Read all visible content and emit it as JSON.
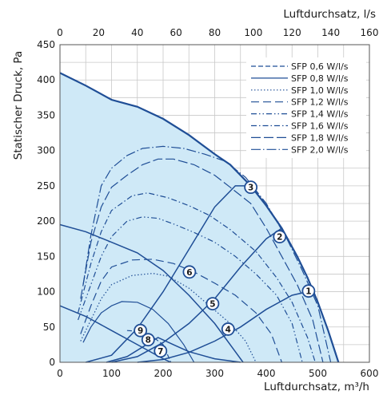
{
  "chart_data": {
    "type": "line",
    "title": "",
    "xlabel": "Luftdurchsatz, m³/h",
    "ylabel": "Statischer Druck, Pa",
    "x2label": "Luftdurchsatz, l/s",
    "xlim": [
      0,
      600
    ],
    "ylim": [
      0,
      450
    ],
    "x2lim": [
      0,
      160
    ],
    "xticks": [
      0,
      100,
      200,
      300,
      400,
      500,
      600
    ],
    "yticks": [
      0,
      50,
      100,
      150,
      200,
      250,
      300,
      350,
      400,
      450
    ],
    "x2ticks": [
      0,
      20,
      40,
      60,
      80,
      100,
      120,
      140,
      160
    ],
    "grid": true,
    "legend_position": "top-right",
    "colors": {
      "curve": "#1f4e96",
      "fill": "#cfe9f7",
      "grid": "#c8c8c8",
      "marker_fill": "#ffffff"
    },
    "envelope": {
      "name": "",
      "points": [
        [
          0,
          410
        ],
        [
          50,
          392
        ],
        [
          100,
          372
        ],
        [
          150,
          362
        ],
        [
          200,
          345
        ],
        [
          250,
          322
        ],
        [
          300,
          295
        ],
        [
          330,
          280
        ],
        [
          370,
          250
        ],
        [
          400,
          222
        ],
        [
          430,
          190
        ],
        [
          460,
          150
        ],
        [
          480,
          120
        ],
        [
          500,
          85
        ],
        [
          520,
          45
        ],
        [
          540,
          0
        ]
      ]
    },
    "curves": [
      {
        "name": "",
        "points": [
          [
            0,
            195
          ],
          [
            50,
            185
          ],
          [
            100,
            170
          ],
          [
            150,
            155
          ],
          [
            200,
            130
          ],
          [
            250,
            95
          ],
          [
            300,
            55
          ],
          [
            340,
            15
          ],
          [
            355,
            0
          ]
        ]
      },
      {
        "name": "",
        "points": [
          [
            0,
            80
          ],
          [
            50,
            65
          ],
          [
            100,
            45
          ],
          [
            150,
            25
          ],
          [
            200,
            5
          ],
          [
            215,
            0
          ]
        ]
      },
      {
        "name": "",
        "points": [
          [
            150,
            0
          ],
          [
            200,
            4
          ],
          [
            250,
            14
          ],
          [
            300,
            30
          ],
          [
            350,
            50
          ],
          [
            400,
            75
          ],
          [
            450,
            95
          ],
          [
            480,
            100
          ]
        ]
      },
      {
        "name": "",
        "points": [
          [
            100,
            0
          ],
          [
            150,
            8
          ],
          [
            200,
            28
          ],
          [
            250,
            55
          ],
          [
            300,
            90
          ],
          [
            350,
            135
          ],
          [
            400,
            175
          ],
          [
            430,
            190
          ]
        ]
      },
      {
        "name": "",
        "points": [
          [
            50,
            0
          ],
          [
            100,
            10
          ],
          [
            150,
            48
          ],
          [
            200,
            100
          ],
          [
            250,
            160
          ],
          [
            300,
            220
          ],
          [
            340,
            250
          ],
          [
            370,
            250
          ]
        ]
      },
      {
        "name": "",
        "points": [
          [
            90,
            0
          ],
          [
            130,
            8
          ],
          [
            190,
            35
          ],
          [
            220,
            25
          ],
          [
            250,
            15
          ],
          [
            300,
            5
          ],
          [
            350,
            0
          ]
        ]
      }
    ],
    "series": [
      {
        "name": "SFP 0,6 W/l/s",
        "dash": "6,3",
        "points": [
          [
            130,
            45
          ],
          [
            150,
            44
          ],
          [
            180,
            36
          ],
          [
            200,
            25
          ],
          [
            215,
            0
          ]
        ]
      },
      {
        "name": "SFP 0,8 W/l/s",
        "dash": "",
        "points": [
          [
            45,
            28
          ],
          [
            60,
            50
          ],
          [
            80,
            70
          ],
          [
            100,
            80
          ],
          [
            120,
            86
          ],
          [
            150,
            85
          ],
          [
            180,
            75
          ],
          [
            210,
            55
          ],
          [
            240,
            25
          ],
          [
            260,
            0
          ]
        ]
      },
      {
        "name": "SFP 1,0 W/l/s",
        "dash": "1.5,2.5",
        "points": [
          [
            40,
            30
          ],
          [
            60,
            60
          ],
          [
            80,
            90
          ],
          [
            100,
            110
          ],
          [
            140,
            123
          ],
          [
            180,
            126
          ],
          [
            210,
            122
          ],
          [
            250,
            105
          ],
          [
            290,
            80
          ],
          [
            330,
            55
          ],
          [
            360,
            30
          ],
          [
            380,
            0
          ]
        ]
      },
      {
        "name": "SFP 1,2 W/l/s",
        "dash": "10,5",
        "points": [
          [
            40,
            40
          ],
          [
            60,
            80
          ],
          [
            80,
            115
          ],
          [
            100,
            135
          ],
          [
            140,
            145
          ],
          [
            180,
            146
          ],
          [
            220,
            140
          ],
          [
            260,
            128
          ],
          [
            300,
            112
          ],
          [
            340,
            95
          ],
          [
            380,
            70
          ],
          [
            410,
            40
          ],
          [
            430,
            0
          ]
        ]
      },
      {
        "name": "SFP 1,4 W/l/s",
        "dash": "7,3,1.5,3,1.5,3",
        "points": [
          [
            35,
            60
          ],
          [
            60,
            110
          ],
          [
            80,
            150
          ],
          [
            100,
            178
          ],
          [
            130,
            200
          ],
          [
            160,
            206
          ],
          [
            190,
            204
          ],
          [
            220,
            196
          ],
          [
            260,
            184
          ],
          [
            300,
            170
          ],
          [
            340,
            150
          ],
          [
            380,
            125
          ],
          [
            420,
            95
          ],
          [
            450,
            55
          ],
          [
            470,
            0
          ]
        ]
      },
      {
        "name": "SFP 1,6 W/l/s",
        "dash": "7,3,1.5,3",
        "points": [
          [
            35,
            70
          ],
          [
            60,
            140
          ],
          [
            80,
            185
          ],
          [
            100,
            215
          ],
          [
            140,
            236
          ],
          [
            170,
            240
          ],
          [
            210,
            233
          ],
          [
            250,
            222
          ],
          [
            290,
            208
          ],
          [
            330,
            188
          ],
          [
            380,
            157
          ],
          [
            420,
            120
          ],
          [
            450,
            85
          ],
          [
            480,
            35
          ],
          [
            495,
            0
          ]
        ]
      },
      {
        "name": "SFP 1,8 W/l/s",
        "dash": "12,4",
        "points": [
          [
            40,
            90
          ],
          [
            60,
            170
          ],
          [
            80,
            220
          ],
          [
            100,
            248
          ],
          [
            130,
            265
          ],
          [
            160,
            280
          ],
          [
            190,
            288
          ],
          [
            220,
            288
          ],
          [
            260,
            280
          ],
          [
            300,
            265
          ],
          [
            330,
            248
          ],
          [
            370,
            225
          ],
          [
            400,
            190
          ],
          [
            430,
            150
          ],
          [
            460,
            110
          ],
          [
            490,
            60
          ],
          [
            510,
            0
          ]
        ]
      },
      {
        "name": "SFP 2,0 W/l/s",
        "dash": "12,3,1.5,3",
        "points": [
          [
            45,
            110
          ],
          [
            60,
            180
          ],
          [
            80,
            250
          ],
          [
            100,
            275
          ],
          [
            130,
            293
          ],
          [
            160,
            303
          ],
          [
            200,
            306
          ],
          [
            240,
            303
          ],
          [
            280,
            295
          ],
          [
            320,
            285
          ],
          [
            360,
            262
          ],
          [
            400,
            225
          ],
          [
            440,
            175
          ],
          [
            470,
            130
          ],
          [
            500,
            80
          ],
          [
            525,
            0
          ]
        ]
      }
    ],
    "operating_points": [
      {
        "label": "1",
        "x": 482,
        "y": 101
      },
      {
        "label": "2",
        "x": 426,
        "y": 178
      },
      {
        "label": "3",
        "x": 370,
        "y": 248
      },
      {
        "label": "4",
        "x": 326,
        "y": 47
      },
      {
        "label": "5",
        "x": 296,
        "y": 83
      },
      {
        "label": "6",
        "x": 251,
        "y": 128
      },
      {
        "label": "7",
        "x": 195,
        "y": 16
      },
      {
        "label": "8",
        "x": 171,
        "y": 32
      },
      {
        "label": "9",
        "x": 156,
        "y": 45
      }
    ]
  }
}
